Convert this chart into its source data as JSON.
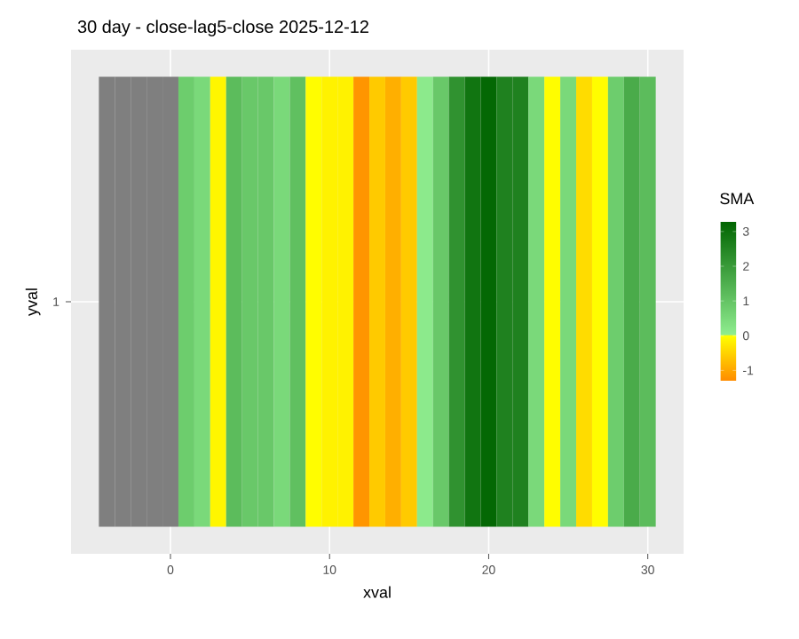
{
  "chart_data": {
    "type": "heatmap",
    "title": "30 day - close-lag5-close  2025-12-12",
    "xlabel": "xval",
    "ylabel": "yval",
    "clabel": "SMA",
    "x": [
      -4,
      -3,
      -2,
      -1,
      0,
      1,
      2,
      3,
      4,
      5,
      6,
      7,
      8,
      9,
      10,
      11,
      12,
      13,
      14,
      15,
      16,
      17,
      18,
      19,
      20,
      21,
      22,
      23,
      24,
      25,
      26,
      27,
      28,
      29,
      30
    ],
    "y_categories": [
      "1"
    ],
    "cells": [
      [
        null,
        null,
        null,
        null,
        null,
        0.8,
        0.5,
        -0.1,
        1.2,
        0.9,
        0.9,
        0.5,
        1.1,
        -0.02,
        -0.15,
        -0.15,
        -1.2,
        -0.6,
        -0.9,
        -0.6,
        0.1,
        0.9,
        2.2,
        2.9,
        3.2,
        2.6,
        2.6,
        0.5,
        -0.02,
        0.5,
        -0.4,
        -0.02,
        0.8,
        1.6,
        1.2
      ]
    ],
    "xlim": [
      -6.25,
      32.25
    ],
    "xticks": [
      0,
      10,
      20,
      30
    ],
    "clim": [
      -1.3,
      3.3
    ],
    "cticks": [
      -1,
      0,
      1,
      2,
      3
    ],
    "grid": true
  }
}
